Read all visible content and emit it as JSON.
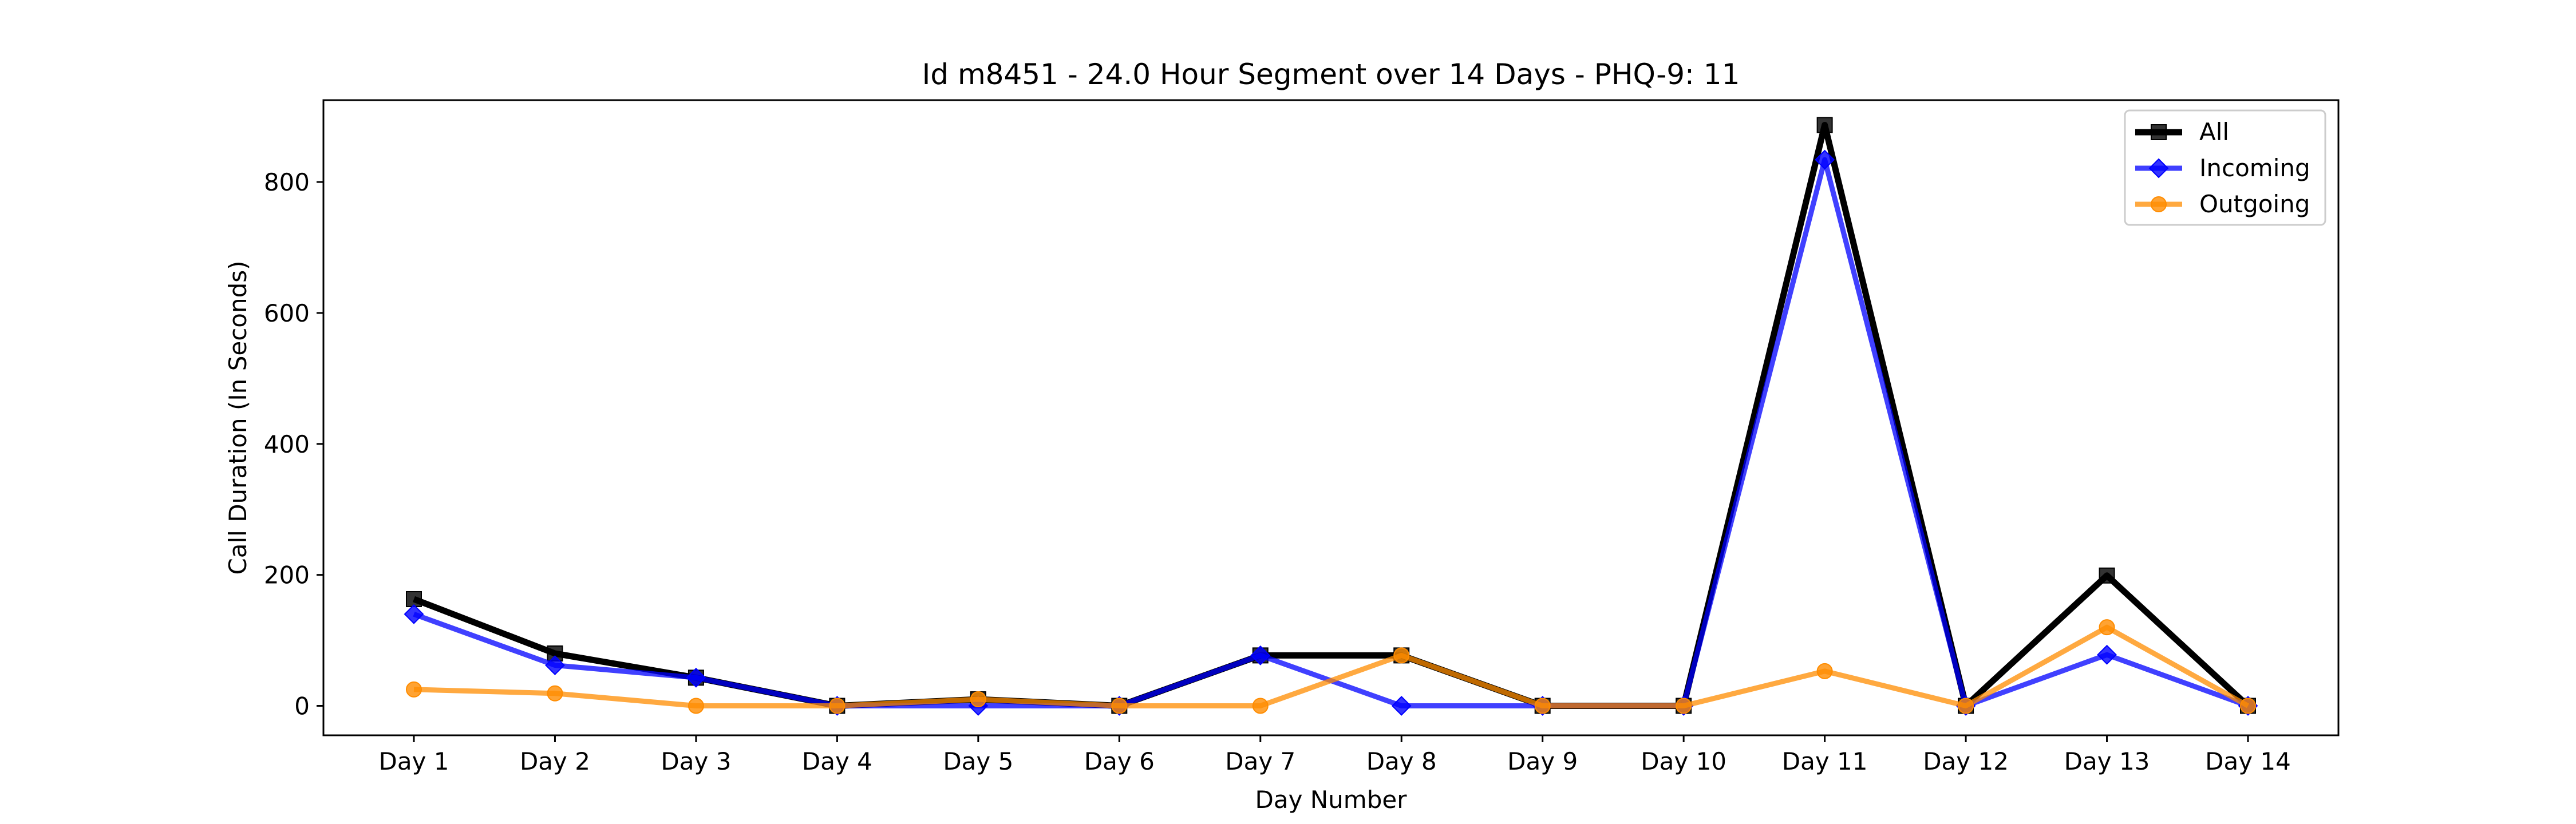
{
  "chart_data": {
    "type": "line",
    "title": "Id m8451 - 24.0 Hour Segment over 14 Days - PHQ-9: 11",
    "xlabel": "Day Number",
    "ylabel": "Call Duration (In Seconds)",
    "categories": [
      "Day 1",
      "Day 2",
      "Day 3",
      "Day 4",
      "Day 5",
      "Day 6",
      "Day 7",
      "Day 8",
      "Day 9",
      "Day 10",
      "Day 11",
      "Day 12",
      "Day 13",
      "Day 14"
    ],
    "ylim": [
      -45,
      925
    ],
    "yticks": [
      0,
      200,
      400,
      600,
      800
    ],
    "grid": false,
    "legend_position": "top-right",
    "series": [
      {
        "name": "All",
        "color": "#000000",
        "marker": "square",
        "values": [
          163,
          80,
          43,
          0,
          10,
          0,
          77,
          77,
          0,
          0,
          887,
          0,
          199,
          0
        ]
      },
      {
        "name": "Incoming",
        "color": "#0000ff",
        "marker": "diamond",
        "values": [
          140,
          62,
          43,
          0,
          0,
          0,
          77,
          0,
          0,
          0,
          834,
          0,
          78,
          0
        ]
      },
      {
        "name": "Outgoing",
        "color": "#ff8c00",
        "marker": "circle",
        "values": [
          25,
          19,
          0,
          0,
          10,
          0,
          0,
          77,
          0,
          0,
          53,
          0,
          120,
          0
        ]
      }
    ]
  }
}
